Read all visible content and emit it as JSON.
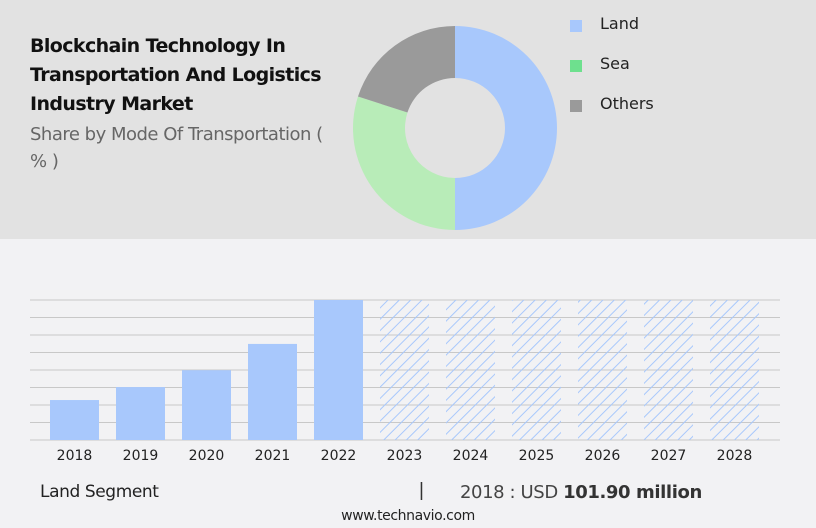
{
  "header": {
    "title": "Blockchain Technology In Transportation And Logistics Industry Market",
    "subtitle": "Share by Mode Of Transportation ( % )"
  },
  "chart_data": [
    {
      "type": "pie",
      "variant": "donut",
      "title": "Share by Mode Of Transportation ( % )",
      "labels": [
        "Land",
        "Sea",
        "Others"
      ],
      "values": [
        50,
        30,
        20
      ],
      "colors": [
        "#a8c8fc",
        "#b8ecb8",
        "#9a9a9a"
      ],
      "legend_colors": [
        "#a8c8fc",
        "#6ee08e",
        "#9a9a9a"
      ],
      "legend_position": "right"
    },
    {
      "type": "bar",
      "title": "Land Segment",
      "categories": [
        "2018",
        "2019",
        "2020",
        "2021",
        "2022",
        "2023",
        "2024",
        "2025",
        "2026",
        "2027",
        "2028"
      ],
      "values": [
        101.9,
        135,
        178,
        245,
        357,
        null,
        null,
        null,
        null,
        null,
        null
      ],
      "forecast": [
        false,
        false,
        false,
        false,
        false,
        true,
        true,
        true,
        true,
        true,
        true
      ],
      "ylim": [
        0,
        357
      ],
      "grid": true,
      "gridlines": 8,
      "color": "#a8c8fc",
      "unit": "USD million"
    }
  ],
  "footer": {
    "segment": "Land Segment",
    "separator": "|",
    "value_prefix": "2018 : USD ",
    "value_bold": "101.90 million",
    "url": "www.technavio.com"
  }
}
